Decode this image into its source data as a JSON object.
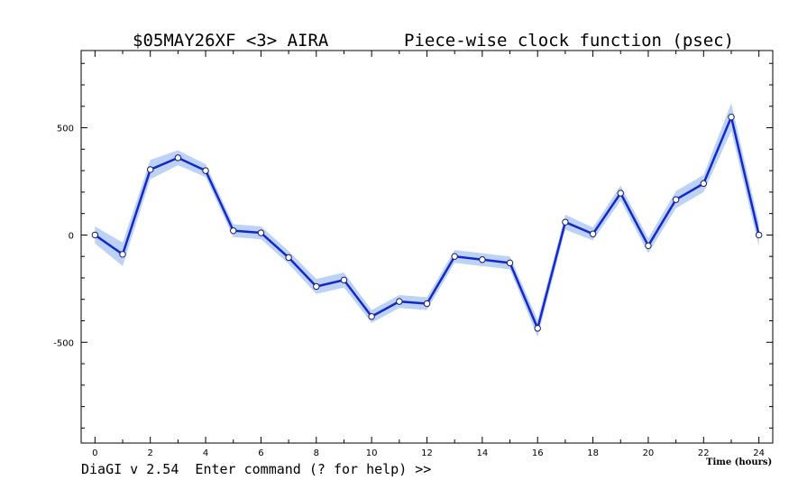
{
  "status_line": "DiaGI v 2.54  Enter command (? for help) >>",
  "chart_data": {
    "type": "line",
    "title_left": "$05MAY26XF <3>  AIRA",
    "title_right": "Piece-wise clock function (psec)",
    "xlabel": "Time (hours)",
    "ylabel": "",
    "xlim": [
      -0.5,
      24.5
    ],
    "ylim": [
      -970,
      860
    ],
    "x_ticks": [
      0,
      2,
      4,
      6,
      8,
      10,
      12,
      14,
      16,
      18,
      20,
      22,
      24
    ],
    "y_ticks": [
      -500,
      0,
      500
    ],
    "grid": false,
    "line_color": "#1428c8",
    "band_color": "#bcd2f7",
    "point_fill": "#ffffff",
    "series": [
      {
        "x": [
          0,
          1,
          2,
          3,
          4,
          5,
          6,
          7,
          8,
          9,
          10,
          11,
          12,
          13,
          14,
          15,
          16,
          17,
          18,
          19,
          20,
          21,
          22,
          23,
          24
        ],
        "values": [
          0,
          -90,
          305,
          360,
          300,
          20,
          10,
          -105,
          -240,
          -210,
          -380,
          -310,
          -320,
          -100,
          -115,
          -130,
          -435,
          60,
          5,
          195,
          -50,
          165,
          240,
          550,
          0
        ],
        "errors": [
          40,
          55,
          45,
          35,
          30,
          30,
          30,
          30,
          35,
          35,
          30,
          30,
          30,
          30,
          30,
          30,
          40,
          35,
          30,
          35,
          35,
          40,
          40,
          65,
          55
        ]
      }
    ]
  }
}
